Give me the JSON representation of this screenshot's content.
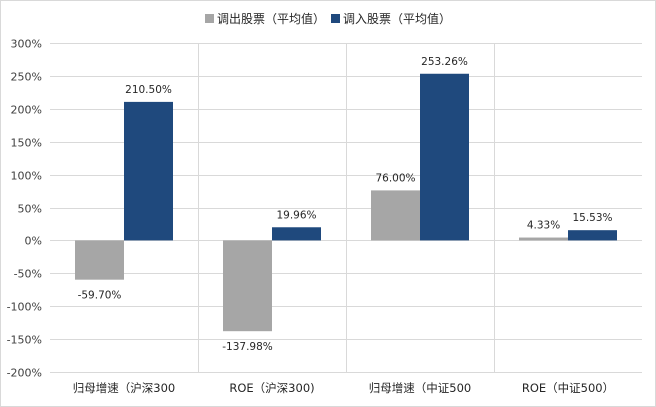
{
  "chart_data": {
    "type": "bar",
    "categories": [
      "归母增速（沪深300",
      "ROE（沪深300)",
      "归母增速（中证500",
      "ROE（中证500）"
    ],
    "series": [
      {
        "name": "调出股票（平均值）",
        "color": "#a6a6a6",
        "values": [
          -59.7,
          -137.98,
          76.0,
          4.33
        ],
        "labels": [
          "-59.70%",
          "-137.98%",
          "76.00%",
          "4.33%"
        ]
      },
      {
        "name": "调入股票（平均值）",
        "color": "#1f497d",
        "values": [
          210.5,
          19.96,
          253.26,
          15.53
        ],
        "labels": [
          "210.50%",
          "19.96%",
          "253.26%",
          "15.53%"
        ]
      }
    ],
    "ylim": [
      -200,
      300
    ],
    "ytick_step": 50,
    "ytick_labels": [
      "-200%",
      "-150%",
      "-100%",
      "-50%",
      "0%",
      "50%",
      "100%",
      "150%",
      "200%",
      "250%",
      "300%"
    ],
    "grid": true,
    "legend": "top-center"
  }
}
